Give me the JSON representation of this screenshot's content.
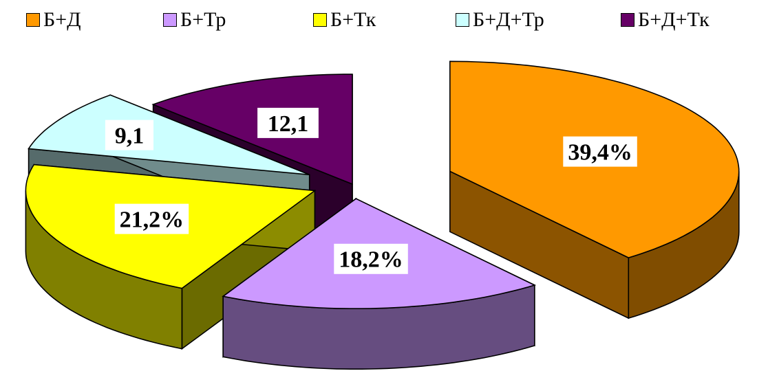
{
  "chart_data": {
    "type": "pie",
    "title": "",
    "style": "3d-exploded",
    "categories": [
      "Б+Д",
      "Б+Тр",
      "Б+Тк",
      "Б+Д+Тр",
      "Б+Д+Тк"
    ],
    "values": [
      39.4,
      18.2,
      21.2,
      9.1,
      12.1
    ],
    "data_labels": [
      "39,4%",
      "18,2%",
      "21,2%",
      "9,1",
      "12,1"
    ],
    "colors": [
      "#FF9900",
      "#CC99FF",
      "#FFFF00",
      "#CCFFFF",
      "#660066"
    ],
    "legend_position": "top"
  }
}
